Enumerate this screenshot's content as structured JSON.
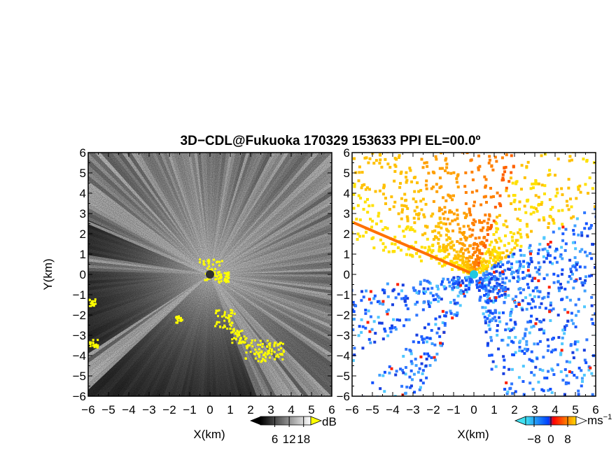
{
  "chart_data": [
    {
      "type": "heatmap",
      "title": "3D−CDL@Fukuoka 170329 153633 PPI EL=00.0º",
      "panel": "left",
      "xlabel": "X(km)",
      "ylabel": "Y(km)",
      "xlim": [
        -6,
        6
      ],
      "ylim": [
        -6,
        6
      ],
      "x_ticks": [
        "−6",
        "−5",
        "−4",
        "−3",
        "−2",
        "−1",
        "0",
        "1",
        "2",
        "3",
        "4",
        "5",
        "6"
      ],
      "y_ticks": [
        "6",
        "5",
        "4",
        "3",
        "2",
        "1",
        "0",
        "−1",
        "−2",
        "−3",
        "−4",
        "−5",
        "−6"
      ],
      "colorbar": {
        "unit": "dB",
        "tick_labels": [
          "6",
          "12",
          "18"
        ],
        "tick_values": [
          6,
          12,
          18
        ],
        "range": [
          0,
          21
        ],
        "colors": [
          "#000000",
          "#ffffff"
        ],
        "over_color": "#ffff00"
      }
    },
    {
      "type": "heatmap",
      "panel": "right",
      "xlabel": "X(km)",
      "ylabel": "",
      "xlim": [
        -6,
        6
      ],
      "ylim": [
        -6,
        6
      ],
      "x_ticks": [
        "−6",
        "−5",
        "−4",
        "−3",
        "−2",
        "−1",
        "0",
        "1",
        "2",
        "3",
        "4",
        "5",
        "6"
      ],
      "y_ticks": [
        "6",
        "5",
        "4",
        "3",
        "2",
        "1",
        "0",
        "−1",
        "−2",
        "−3",
        "−4",
        "−5",
        "−6"
      ],
      "colorbar": {
        "unit": "ms",
        "unit_exponent": "−1",
        "tick_labels": [
          "−8",
          "0",
          "8"
        ],
        "tick_values": [
          -8,
          0,
          8
        ],
        "range": [
          -12,
          12
        ],
        "colors": [
          "#40e0f0",
          "#0040ff",
          "#ff0000",
          "#ffd800"
        ]
      }
    }
  ]
}
